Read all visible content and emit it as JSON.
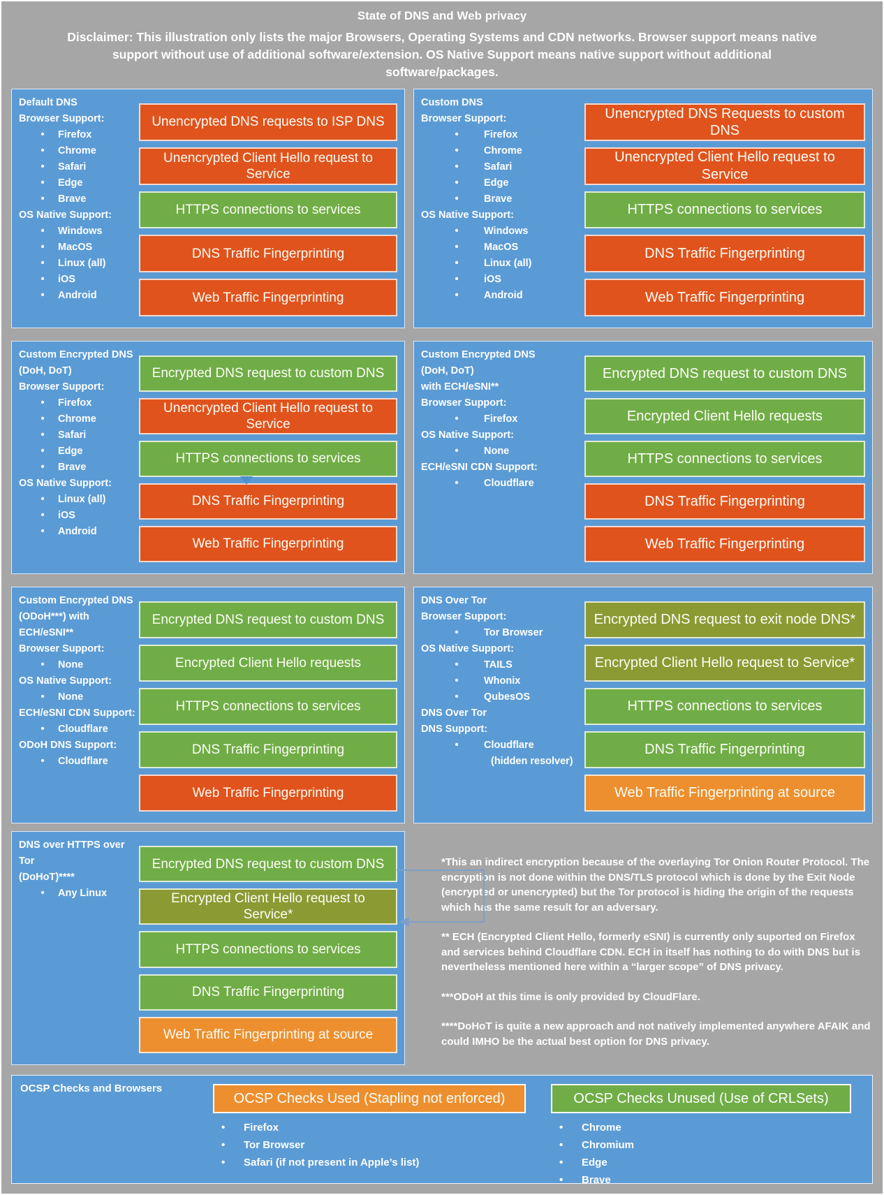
{
  "header": {
    "title": "State of DNS and Web privacy",
    "disclaimer": "Disclaimer: This illustration only lists the major Browsers, Operating Systems and CDN networks. Browser support means native support without use of additional software/extension. OS Native Support means native support without additional software/packages."
  },
  "colors": {
    "panel_blue": "#5b9bd5",
    "orange": "#e0531d",
    "green": "#70ad47",
    "olive": "#8c9a33",
    "amber": "#ed8f2e",
    "background_gray": "#a6a6a6"
  },
  "panels": [
    {
      "name": "default-dns",
      "sidebar": [
        {
          "t": "h",
          "text": "Default DNS"
        },
        {
          "t": "h",
          "text": "Browser Support:"
        },
        {
          "t": "b",
          "text": "Firefox"
        },
        {
          "t": "b",
          "text": "Chrome"
        },
        {
          "t": "b",
          "text": "Safari"
        },
        {
          "t": "b",
          "text": "Edge"
        },
        {
          "t": "b",
          "text": "Brave"
        },
        {
          "t": "h",
          "text": "OS Native Support:"
        },
        {
          "t": "b",
          "text": "Windows"
        },
        {
          "t": "b",
          "text": "MacOS"
        },
        {
          "t": "b",
          "text": "Linux (all)"
        },
        {
          "t": "b",
          "text": "iOS"
        },
        {
          "t": "b",
          "text": "Android"
        }
      ],
      "bars": [
        {
          "text": "Unencrypted DNS requests to ISP DNS",
          "color": "orange"
        },
        {
          "text": "Unencrypted Client Hello request to Service",
          "color": "orange"
        },
        {
          "text": "HTTPS connections to services",
          "color": "green"
        },
        {
          "text": "DNS Traffic Fingerprinting",
          "color": "orange"
        },
        {
          "text": "Web Traffic Fingerprinting",
          "color": "orange"
        }
      ]
    },
    {
      "name": "custom-dns",
      "sidebar": [
        {
          "t": "h",
          "text": "Custom DNS"
        },
        {
          "t": "h",
          "text": "Browser Support:"
        },
        {
          "t": "b",
          "text": "Firefox"
        },
        {
          "t": "b",
          "text": "Chrome"
        },
        {
          "t": "b",
          "text": "Safari"
        },
        {
          "t": "b",
          "text": "Edge"
        },
        {
          "t": "b",
          "text": "Brave"
        },
        {
          "t": "h",
          "text": "OS Native Support:"
        },
        {
          "t": "b",
          "text": "Windows"
        },
        {
          "t": "b",
          "text": "MacOS"
        },
        {
          "t": "b",
          "text": "Linux (all)"
        },
        {
          "t": "b",
          "text": "iOS"
        },
        {
          "t": "b",
          "text": "Android"
        }
      ],
      "bars": [
        {
          "text": "Unencrypted DNS Requests to custom DNS",
          "color": "orange"
        },
        {
          "text": "Unencrypted Client Hello request to Service",
          "color": "orange"
        },
        {
          "text": "HTTPS connections to services",
          "color": "green"
        },
        {
          "text": "DNS Traffic Fingerprinting",
          "color": "orange"
        },
        {
          "text": "Web Traffic Fingerprinting",
          "color": "orange"
        }
      ]
    },
    {
      "name": "custom-encrypted-dns-doh-dot",
      "sidebar": [
        {
          "t": "h",
          "text": "Custom Encrypted DNS"
        },
        {
          "t": "h",
          "text": "(DoH, DoT)"
        },
        {
          "t": "h",
          "text": "Browser Support:"
        },
        {
          "t": "b",
          "text": "Firefox"
        },
        {
          "t": "b",
          "text": "Chrome"
        },
        {
          "t": "b",
          "text": "Safari"
        },
        {
          "t": "b",
          "text": "Edge"
        },
        {
          "t": "b",
          "text": "Brave"
        },
        {
          "t": "h",
          "text": "OS Native Support:"
        },
        {
          "t": "b",
          "text": "Linux (all)"
        },
        {
          "t": "b",
          "text": "iOS"
        },
        {
          "t": "b",
          "text": "Android"
        }
      ],
      "bars": [
        {
          "text": "Encrypted DNS request to custom DNS",
          "color": "green"
        },
        {
          "text": "Unencrypted Client Hello request to Service",
          "color": "orange"
        },
        {
          "text": "HTTPS connections to services",
          "color": "green"
        },
        {
          "text": "DNS Traffic Fingerprinting",
          "color": "orange"
        },
        {
          "text": "Web Traffic Fingerprinting",
          "color": "orange"
        }
      ]
    },
    {
      "name": "custom-encrypted-dns-ech-esni",
      "sidebar": [
        {
          "t": "h",
          "text": "Custom Encrypted DNS"
        },
        {
          "t": "h",
          "text": "(DoH, DoT)"
        },
        {
          "t": "h",
          "text": "with ECH/eSNI**"
        },
        {
          "t": "h",
          "text": "Browser Support:"
        },
        {
          "t": "b",
          "text": "Firefox"
        },
        {
          "t": "h",
          "text": "OS Native Support:"
        },
        {
          "t": "b",
          "text": "None"
        },
        {
          "t": "h",
          "text": "ECH/eSNI CDN Support:"
        },
        {
          "t": "b",
          "text": "Cloudflare"
        }
      ],
      "bars": [
        {
          "text": "Encrypted DNS request to custom DNS",
          "color": "green"
        },
        {
          "text": "Encrypted Client Hello requests",
          "color": "green"
        },
        {
          "text": "HTTPS connections to services",
          "color": "green"
        },
        {
          "text": "DNS Traffic Fingerprinting",
          "color": "orange"
        },
        {
          "text": "Web Traffic Fingerprinting",
          "color": "orange"
        }
      ]
    },
    {
      "name": "custom-encrypted-dns-odoh",
      "sidebar": [
        {
          "t": "h",
          "text": "Custom Encrypted DNS"
        },
        {
          "t": "h",
          "text": "(ODoH***) with"
        },
        {
          "t": "h",
          "text": "ECH/eSNI**"
        },
        {
          "t": "h",
          "text": "Browser Support:"
        },
        {
          "t": "b",
          "text": "None"
        },
        {
          "t": "h",
          "text": "OS Native Support:"
        },
        {
          "t": "b",
          "text": "None"
        },
        {
          "t": "h",
          "text": "ECH/eSNI CDN Support:"
        },
        {
          "t": "b",
          "text": "Cloudflare"
        },
        {
          "t": "h",
          "text": "ODoH DNS Support:"
        },
        {
          "t": "b",
          "text": "Cloudflare"
        }
      ],
      "bars": [
        {
          "text": "Encrypted DNS request to custom DNS",
          "color": "green"
        },
        {
          "text": "Encrypted Client Hello requests",
          "color": "green"
        },
        {
          "text": "HTTPS connections to services",
          "color": "green"
        },
        {
          "text": "DNS Traffic Fingerprinting",
          "color": "green"
        },
        {
          "text": "Web Traffic Fingerprinting",
          "color": "orange"
        }
      ]
    },
    {
      "name": "dns-over-tor",
      "sidebar": [
        {
          "t": "h",
          "text": "DNS Over Tor"
        },
        {
          "t": "h",
          "text": "Browser Support:"
        },
        {
          "t": "b",
          "text": "Tor Browser"
        },
        {
          "t": "h",
          "text": "OS Native Support:"
        },
        {
          "t": "b",
          "text": "TAILS"
        },
        {
          "t": "b",
          "text": "Whonix"
        },
        {
          "t": "b",
          "text": "QubesOS"
        },
        {
          "t": "h",
          "text": "DNS Over Tor"
        },
        {
          "t": "h",
          "text": "DNS Support:"
        },
        {
          "t": "b",
          "text": "Cloudflare"
        },
        {
          "t": "n",
          "text": "(hidden resolver)"
        }
      ],
      "bars": [
        {
          "text": "Encrypted DNS request to exit node DNS*",
          "color": "olive"
        },
        {
          "text": "Encrypted Client Hello request to Service*",
          "color": "olive"
        },
        {
          "text": "HTTPS connections to services",
          "color": "green"
        },
        {
          "text": "DNS Traffic Fingerprinting",
          "color": "green"
        },
        {
          "text": "Web Traffic Fingerprinting at source",
          "color": "amber"
        }
      ]
    },
    {
      "name": "dohot",
      "sidebar": [
        {
          "t": "h",
          "text": "DNS over HTTPS over Tor"
        },
        {
          "t": "h",
          "text": "(DoHoT)****"
        },
        {
          "t": "b",
          "text": "Any Linux"
        }
      ],
      "bars": [
        {
          "text": "Encrypted DNS request to custom DNS",
          "color": "green"
        },
        {
          "text": "Encrypted Client Hello request to Service*",
          "color": "olive"
        },
        {
          "text": "HTTPS connections to services",
          "color": "green"
        },
        {
          "text": "DNS Traffic Fingerprinting",
          "color": "green"
        },
        {
          "text": "Web Traffic Fingerprinting at source",
          "color": "amber"
        }
      ]
    }
  ],
  "notes": [
    "*This an indirect encryption because of the overlaying Tor Onion Router Protocol. The encryption is not done within the DNS/TLS protocol which is done by the Exit Node (encrypted or unencrypted) but the Tor protocol is hiding the origin of the requests which has the same result for an adversary.",
    "** ECH (Encrypted Client Hello, formerly eSNI) is currently only suported on Firefox and services behind Cloudflare CDN. ECH in itself has nothing to do with DNS but is nevertheless mentioned here within a “larger scope” of DNS privacy.",
    "***ODoH at this time is only provided by CloudFlare.",
    "****DoHoT is quite a new approach and not natively implemented anywhere AFAIK and could IMHO be the actual best option for DNS privacy."
  ],
  "ocsp": {
    "title": "OCSP Checks and Browsers",
    "used": {
      "label": "OCSP Checks Used (Stapling not enforced)",
      "color": "amber",
      "items": [
        "Firefox",
        "Tor Browser",
        "Safari (if not present in Apple’s list)"
      ]
    },
    "unused": {
      "label": "OCSP Checks Unused (Use of CRLSets)",
      "color": "green",
      "items": [
        "Chrome",
        "Chromium",
        "Edge",
        "Brave"
      ]
    }
  }
}
